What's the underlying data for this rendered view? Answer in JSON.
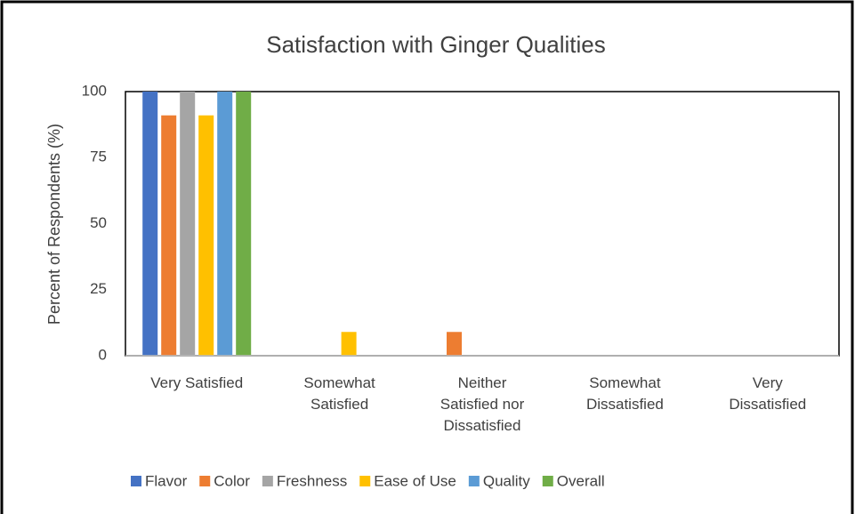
{
  "chart_data": {
    "type": "bar",
    "title": "Satisfaction with Ginger Qualities",
    "y_label": "Percent of Respondents (%)",
    "categories": [
      "Very Satisfied",
      "Somewhat Satisfied",
      "Neither Satisfied nor Dissatisfied",
      "Somewhat Dissatisfied",
      "Very Dissatisfied"
    ],
    "series": [
      {
        "name": "Flavor",
        "color": "#4472c4",
        "values": [
          100,
          0,
          0,
          0,
          0
        ]
      },
      {
        "name": "Color",
        "color": "#ed7d31",
        "values": [
          91,
          0,
          9,
          0,
          0
        ]
      },
      {
        "name": "Freshness",
        "color": "#a5a5a5",
        "values": [
          100,
          0,
          0,
          0,
          0
        ]
      },
      {
        "name": "Ease of Use",
        "color": "#ffc000",
        "values": [
          91,
          9,
          0,
          0,
          0
        ]
      },
      {
        "name": "Quality",
        "color": "#5b9bd5",
        "values": [
          100,
          0,
          0,
          0,
          0
        ]
      },
      {
        "name": "Overall",
        "color": "#70ad47",
        "values": [
          100,
          0,
          0,
          0,
          0
        ]
      }
    ],
    "ylim": [
      0,
      100
    ],
    "yticks": [
      0,
      25,
      50,
      75,
      100
    ],
    "grid": false,
    "legend": "bottom"
  }
}
